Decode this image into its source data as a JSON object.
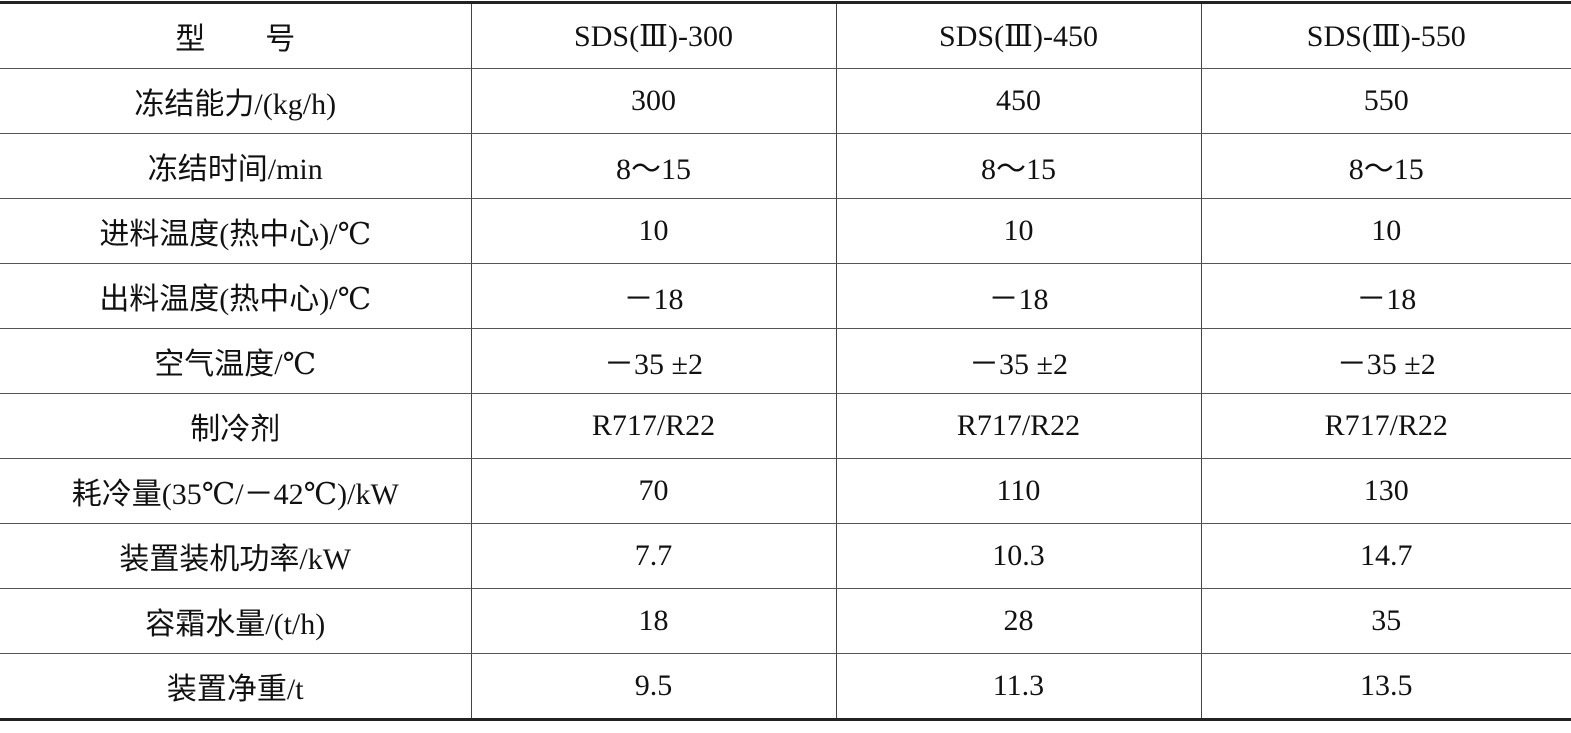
{
  "table": {
    "header": [
      "型　　号",
      "SDS(Ⅲ)-300",
      "SDS(Ⅲ)-450",
      "SDS(Ⅲ)-550"
    ],
    "rows": [
      [
        "冻结能力/(kg/h)",
        "300",
        "450",
        "550"
      ],
      [
        "冻结时间/min",
        "8～15",
        "8～15",
        "8～15"
      ],
      [
        "进料温度(热中心)/℃",
        "10",
        "10",
        "10"
      ],
      [
        "出料温度(热中心)/℃",
        "－18",
        "－18",
        "－18"
      ],
      [
        "空气温度/℃",
        "－35 ±2",
        "－35 ±2",
        "－35 ±2"
      ],
      [
        "制冷剂",
        "R717/R22",
        "R717/R22",
        "R717/R22"
      ],
      [
        "耗冷量(35℃/－42℃)/kW",
        "70",
        "110",
        "130"
      ],
      [
        "装置装机功率/kW",
        "7.7",
        "10.3",
        "14.7"
      ],
      [
        "容霜水量/(t/h)",
        "18",
        "28",
        "35"
      ],
      [
        "装置净重/t",
        "9.5",
        "11.3",
        "13.5"
      ]
    ]
  }
}
